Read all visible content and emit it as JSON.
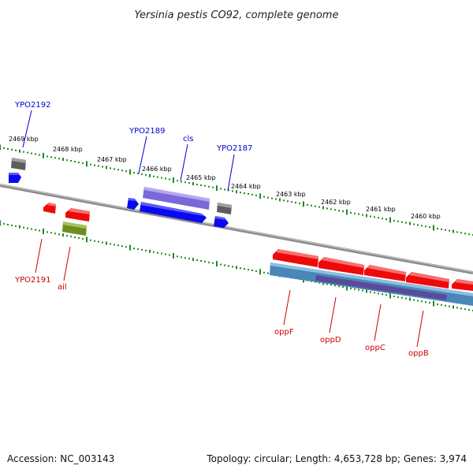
{
  "title": "Yersinia pestis CO92, complete genome",
  "footer": {
    "accession": "Accession: NC_003143",
    "topology": "Topology: circular; Length: 4,653,728 bp; Genes: 3,974"
  },
  "colors": {
    "background": "#ffffff",
    "backbone": "#8c8c8c",
    "tick": "#1f8a1f",
    "upper_label": "#0000cc",
    "lower_label": "#cc0000",
    "gene_blue": "#0a0af0",
    "gene_purple": "#7b68d8",
    "gene_gray": "#5e5e5e",
    "gene_red": "#ee0a0a",
    "gene_olive": "#6b8e23",
    "gene_steelblue": "#4a87b8",
    "gene_darkpurple": "#5a4a9a"
  },
  "scale": {
    "unit": "kbp",
    "tick_labels": [
      "2469 kbp",
      "2468 kbp",
      "2467 kbp",
      "2466 kbp",
      "2465 kbp",
      "2464 kbp",
      "2463 kbp",
      "2462 kbp",
      "2461 kbp",
      "2460 kbp"
    ]
  },
  "gene_labels_upper": [
    "YPO2192",
    "YPO2189",
    "cls",
    "YPO2187"
  ],
  "gene_labels_lower": [
    "YPO2191",
    "ail",
    "oppF",
    "oppD",
    "oppC",
    "oppB"
  ]
}
